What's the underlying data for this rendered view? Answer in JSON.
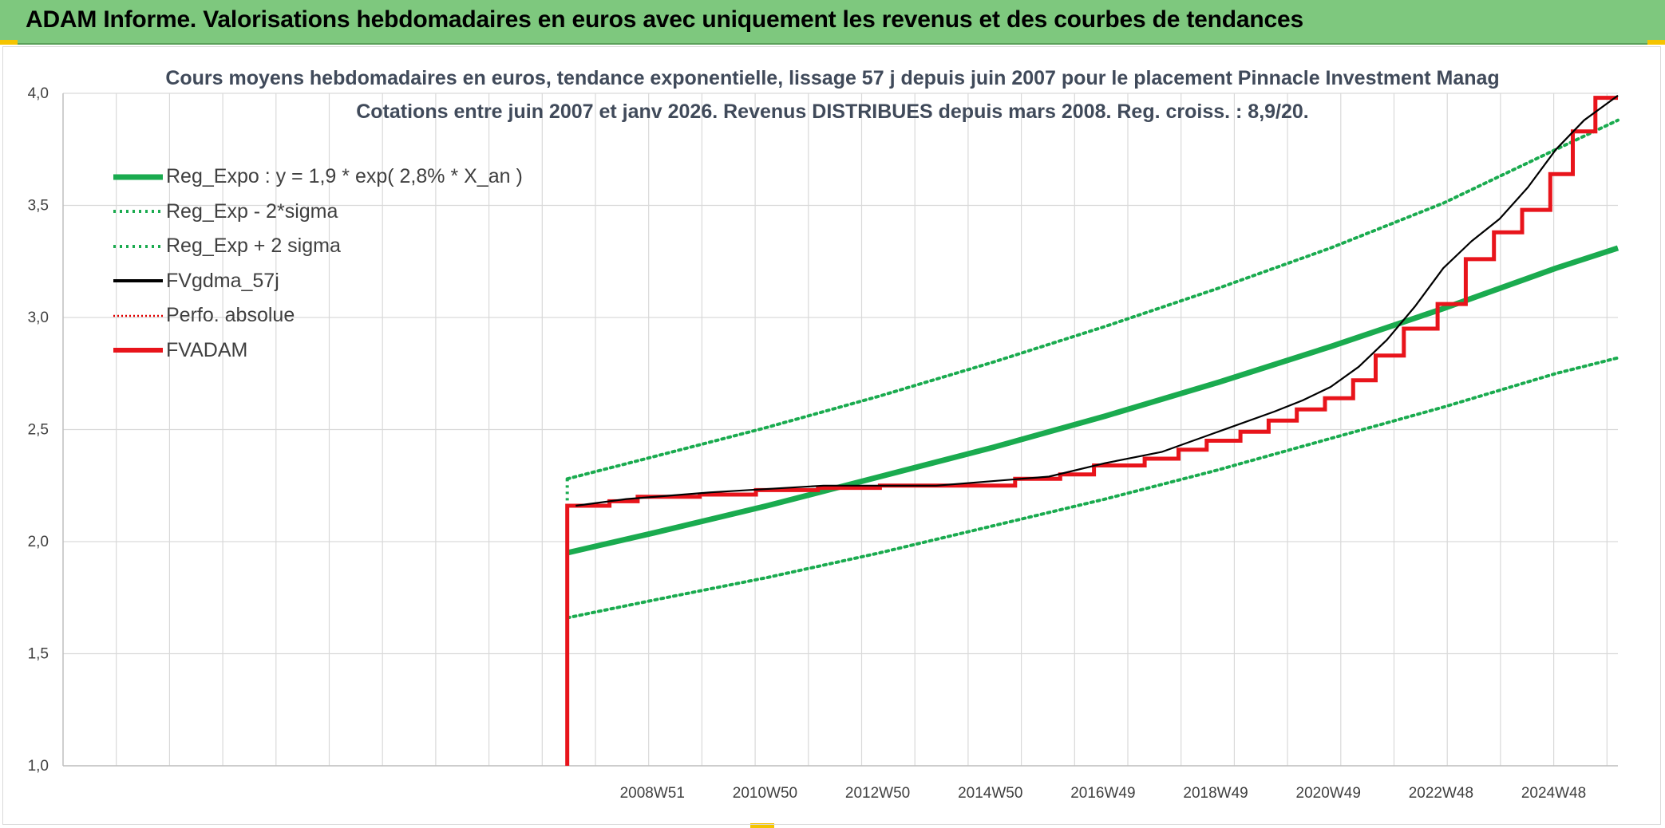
{
  "banner": {
    "title": "ADAM Informe. Valorisations hebdomadaires en euros avec uniquement les revenus et des courbes de tendances"
  },
  "colors": {
    "banner_bg": "#7ec87e",
    "regression": "#1aab4f",
    "sigma_bands": "#1aab4f",
    "fvgdma": "#000000",
    "perfo": "#e00000",
    "fvadam": "#e8141b",
    "grid": "#d9d9d9",
    "axis_text": "#404040"
  },
  "chart_data": {
    "type": "line",
    "title_line1": "Cours moyens hebdomadaires en euros, tendance exponentielle, lissage 57 j depuis juin 2007 pour le placement Pinnacle Investment Manag",
    "title_line2": "Cotations entre juin 2007 et janv 2026. Revenus DISTRIBUES depuis mars 2008. Reg. croiss. : 8,9/20.",
    "x_tick_labels": [
      "2008W51",
      "2010W50",
      "2012W50",
      "2014W50",
      "2016W49",
      "2018W49",
      "2020W49",
      "2022W48",
      "2024W48"
    ],
    "x_tick_years": [
      2008.96,
      2010.96,
      2012.96,
      2014.96,
      2016.96,
      2018.96,
      2020.96,
      2022.96,
      2024.96
    ],
    "xlim": [
      1998.5,
      2026.1
    ],
    "y_tick_labels": [
      "1,0",
      "1,5",
      "2,0",
      "2,5",
      "3,0",
      "3,5",
      "4,0"
    ],
    "ylim": [
      1.0,
      4.0
    ],
    "grid": true,
    "legend_position": "top-left",
    "series": [
      {
        "name": "Reg_Expo : y = 1,9 * exp( 2,8% *  X_an )",
        "style": "solid-thick",
        "x": [
          2007.45,
          2009,
          2011,
          2013,
          2015,
          2017,
          2019,
          2021,
          2023,
          2025,
          2026.1
        ],
        "y": [
          1.95,
          2.04,
          2.16,
          2.29,
          2.42,
          2.56,
          2.71,
          2.87,
          3.04,
          3.22,
          3.31
        ]
      },
      {
        "name": "Reg_Exp - 2*sigma",
        "style": "dotted",
        "x": [
          2007.45,
          2009,
          2011,
          2013,
          2015,
          2017,
          2019,
          2021,
          2023,
          2025,
          2026.1
        ],
        "y": [
          1.66,
          1.74,
          1.84,
          1.95,
          2.07,
          2.19,
          2.32,
          2.46,
          2.6,
          2.75,
          2.82
        ]
      },
      {
        "name": "Reg_Exp + 2 sigma",
        "style": "dotted",
        "x": [
          2007.45,
          2009,
          2011,
          2013,
          2015,
          2017,
          2019,
          2021,
          2023,
          2025,
          2026.1
        ],
        "y": [
          2.28,
          2.38,
          2.51,
          2.65,
          2.8,
          2.96,
          3.13,
          3.31,
          3.51,
          3.75,
          3.88
        ]
      },
      {
        "name": "FVgdma_57j",
        "style": "solid-thin",
        "x": [
          2007.6,
          2008.5,
          2010,
          2012,
          2014,
          2016,
          2017,
          2018,
          2019,
          2020,
          2020.5,
          2021,
          2021.5,
          2022,
          2022.5,
          2023,
          2023.5,
          2024,
          2024.5,
          2025,
          2025.5,
          2026.1
        ],
        "y": [
          2.16,
          2.19,
          2.22,
          2.25,
          2.25,
          2.29,
          2.35,
          2.4,
          2.49,
          2.58,
          2.63,
          2.69,
          2.78,
          2.9,
          3.05,
          3.22,
          3.34,
          3.44,
          3.58,
          3.75,
          3.88,
          3.99
        ]
      },
      {
        "name": "Perfo. absolue",
        "style": "dotted-thin",
        "x": [],
        "y": []
      },
      {
        "name": "FVADAM",
        "style": "step",
        "x": [
          2007.45,
          2007.45,
          2007.45,
          2008.2,
          2008.7,
          2009.8,
          2010.8,
          2011.9,
          2013.0,
          2014.7,
          2015.4,
          2016.2,
          2016.8,
          2017.7,
          2018.3,
          2018.8,
          2019.4,
          2019.9,
          2020.4,
          2020.9,
          2021.4,
          2021.8,
          2022.3,
          2022.9,
          2023.4,
          2023.9,
          2024.4,
          2024.9,
          2025.3,
          2025.7,
          2026.1
        ],
        "y": [
          1.0,
          2.16,
          2.16,
          2.18,
          2.2,
          2.21,
          2.23,
          2.24,
          2.25,
          2.25,
          2.28,
          2.3,
          2.34,
          2.37,
          2.41,
          2.45,
          2.49,
          2.54,
          2.59,
          2.64,
          2.72,
          2.83,
          2.95,
          3.06,
          3.26,
          3.38,
          3.48,
          3.64,
          3.83,
          3.98,
          3.98
        ]
      }
    ]
  }
}
